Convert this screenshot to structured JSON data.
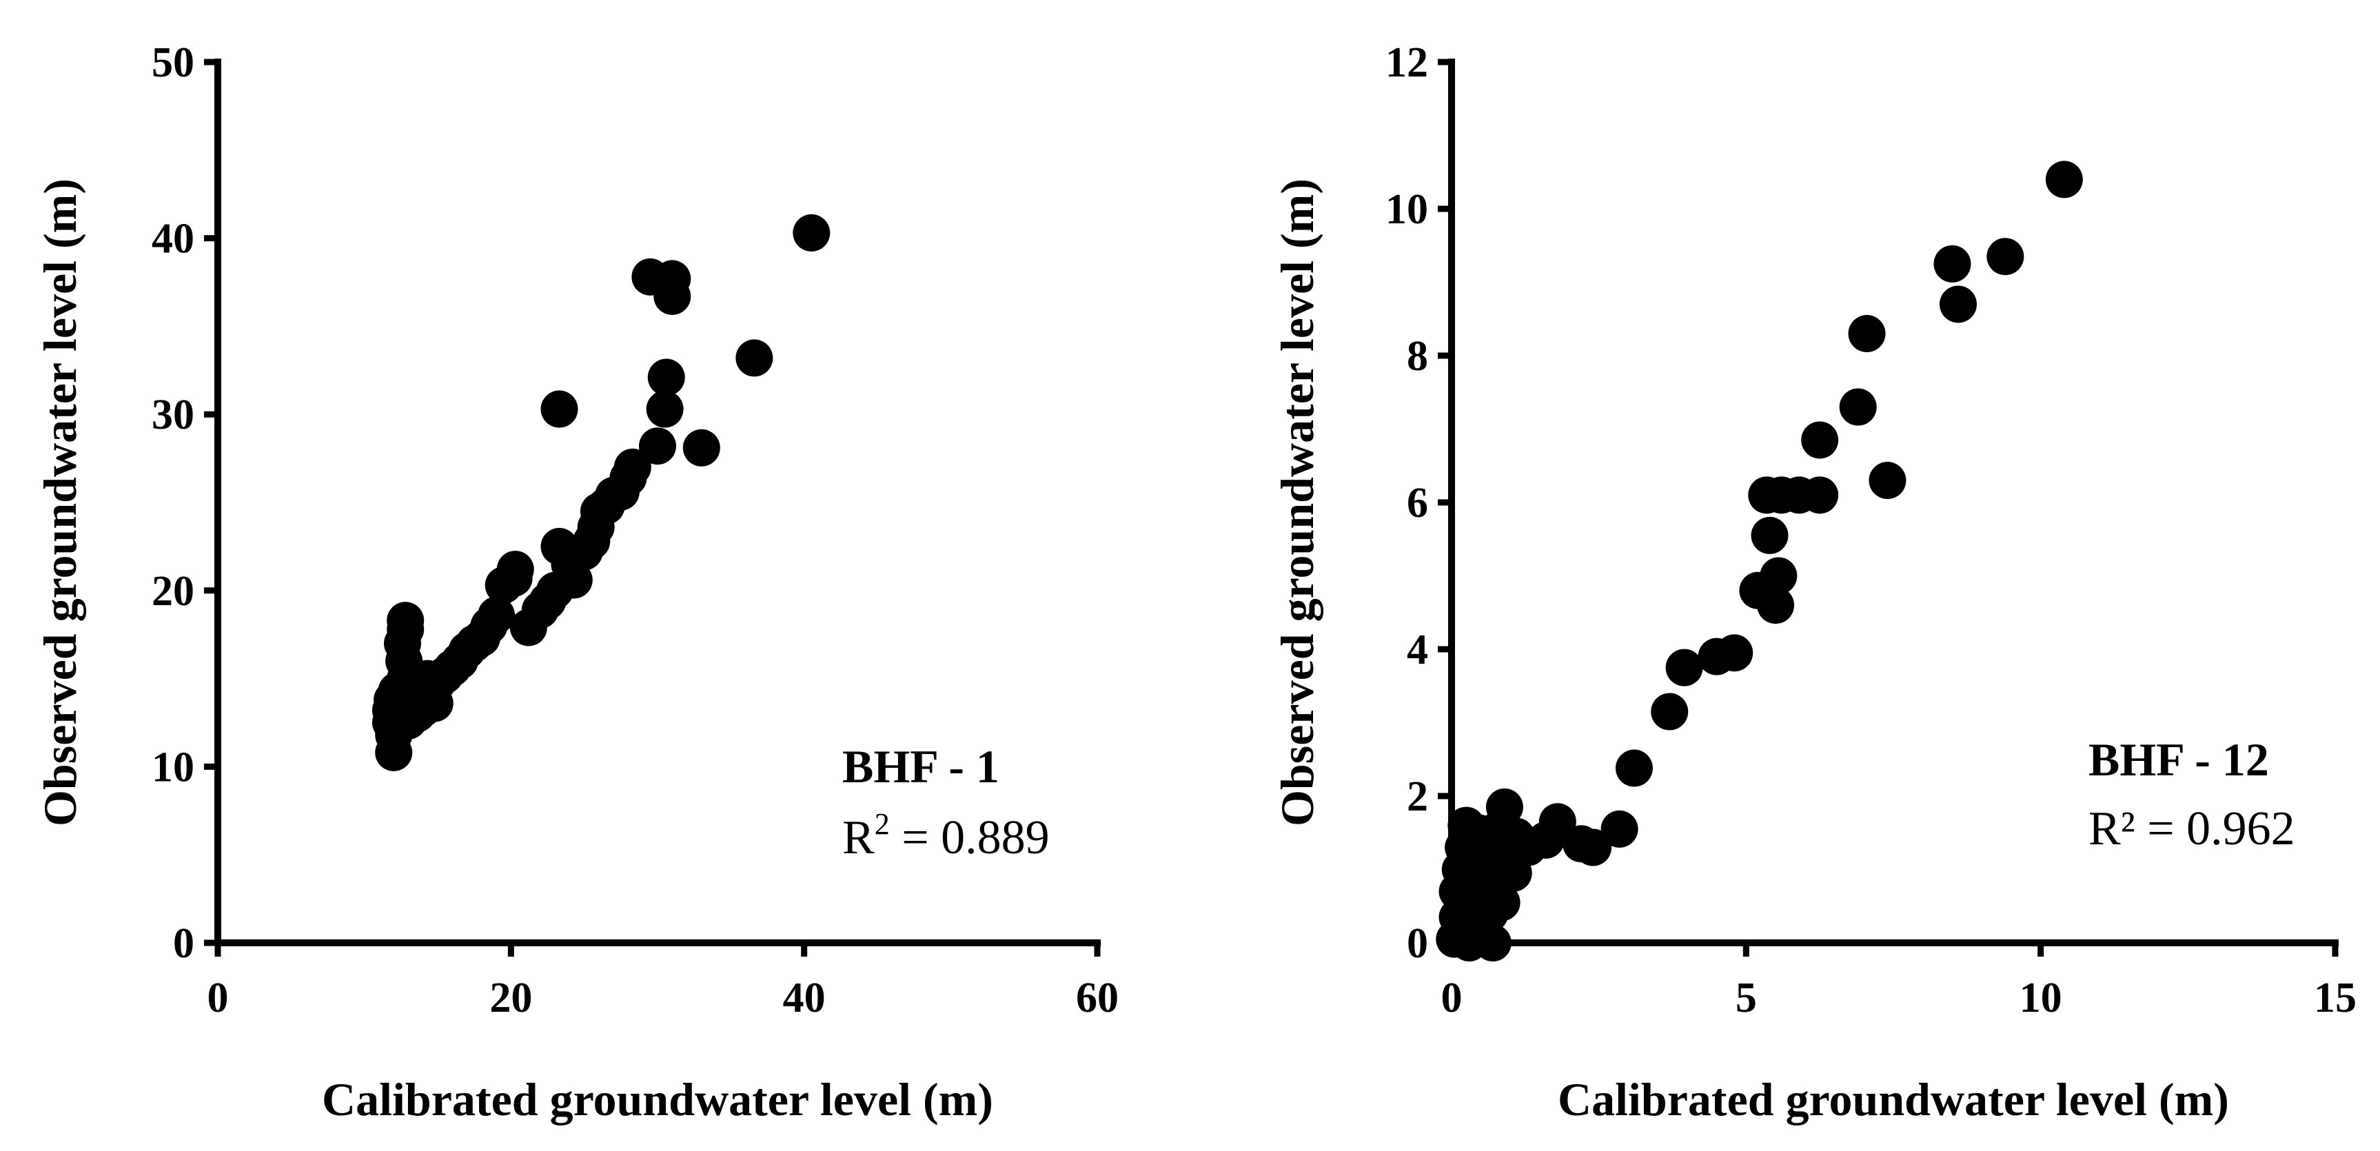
{
  "chart_data": [
    {
      "type": "scatter",
      "title": "",
      "xlabel": "Calibrated groundwater level (m)",
      "ylabel": "Observed groundwater level (m)",
      "xlim": [
        0,
        60
      ],
      "ylim": [
        0,
        50
      ],
      "xticks": [
        0,
        20,
        40,
        60
      ],
      "yticks": [
        0,
        10,
        20,
        30,
        40,
        50
      ],
      "xtick_labels": [
        "0",
        "20",
        "40",
        "60"
      ],
      "ytick_labels": [
        "0",
        "10",
        "20",
        "30",
        "40",
        "50"
      ],
      "grid": false,
      "annotation": {
        "name": "BHF - 1",
        "r2_prefix": "R",
        "r2_sup": "2",
        "r2_value": " = 0.889"
      },
      "color": "#000000",
      "points": [
        [
          12.0,
          10.8
        ],
        [
          12.0,
          11.8
        ],
        [
          11.8,
          12.5
        ],
        [
          11.8,
          13.2
        ],
        [
          11.9,
          13.8
        ],
        [
          12.2,
          14.3
        ],
        [
          12.5,
          13.0
        ],
        [
          12.7,
          14.0
        ],
        [
          12.8,
          15.0
        ],
        [
          12.7,
          16.0
        ],
        [
          12.6,
          17.0
        ],
        [
          12.8,
          17.8
        ],
        [
          12.8,
          18.3
        ],
        [
          13.0,
          12.6
        ],
        [
          13.2,
          13.4
        ],
        [
          13.4,
          14.4
        ],
        [
          13.6,
          13.0
        ],
        [
          13.8,
          14.2
        ],
        [
          14.0,
          13.3
        ],
        [
          14.3,
          15.0
        ],
        [
          14.6,
          14.0
        ],
        [
          14.8,
          13.6
        ],
        [
          15.0,
          14.8
        ],
        [
          15.5,
          15.2
        ],
        [
          16.0,
          15.6
        ],
        [
          16.5,
          16.0
        ],
        [
          17.0,
          16.6
        ],
        [
          17.5,
          17.0
        ],
        [
          18.0,
          17.3
        ],
        [
          18.5,
          18.0
        ],
        [
          19.0,
          18.6
        ],
        [
          19.5,
          20.3
        ],
        [
          20.2,
          20.7
        ],
        [
          20.3,
          21.2
        ],
        [
          21.2,
          17.9
        ],
        [
          22.0,
          18.9
        ],
        [
          22.5,
          19.4
        ],
        [
          23.0,
          20.0
        ],
        [
          23.3,
          22.5
        ],
        [
          24.0,
          21.5
        ],
        [
          24.3,
          20.6
        ],
        [
          25.0,
          22.2
        ],
        [
          25.5,
          22.8
        ],
        [
          25.8,
          23.6
        ],
        [
          26.0,
          24.5
        ],
        [
          26.5,
          24.8
        ],
        [
          27.0,
          25.4
        ],
        [
          27.5,
          25.6
        ],
        [
          28.0,
          26.4
        ],
        [
          28.3,
          27.0
        ],
        [
          29.5,
          37.8
        ],
        [
          30.0,
          28.2
        ],
        [
          30.5,
          30.3
        ],
        [
          30.6,
          32.1
        ],
        [
          31.0,
          37.7
        ],
        [
          31.0,
          36.7
        ],
        [
          33.0,
          28.1
        ],
        [
          36.6,
          33.2
        ],
        [
          40.5,
          40.3
        ],
        [
          23.3,
          30.3
        ]
      ]
    },
    {
      "type": "scatter",
      "title": "",
      "xlabel": "Calibrated groundwater level (m)",
      "ylabel": "Observed groundwater level (m)",
      "xlim": [
        0,
        15
      ],
      "ylim": [
        0,
        12
      ],
      "xticks": [
        0,
        5,
        10,
        15
      ],
      "yticks": [
        0,
        2,
        4,
        6,
        8,
        10,
        12
      ],
      "xtick_labels": [
        "0",
        "5",
        "10",
        "15"
      ],
      "ytick_labels": [
        "0",
        "2",
        "4",
        "6",
        "8",
        "10",
        "12"
      ],
      "grid": false,
      "annotation": {
        "name": "BHF - 12",
        "r2_prefix": "R",
        "r2_sup": "²",
        "r2_value": " = 0.962"
      },
      "color": "#000000",
      "points": [
        [
          0.05,
          0.05
        ],
        [
          0.1,
          0.35
        ],
        [
          0.1,
          0.7
        ],
        [
          0.15,
          1.0
        ],
        [
          0.2,
          1.3
        ],
        [
          0.25,
          1.6
        ],
        [
          0.3,
          0.0
        ],
        [
          0.3,
          0.45
        ],
        [
          0.35,
          0.85
        ],
        [
          0.4,
          1.2
        ],
        [
          0.45,
          1.5
        ],
        [
          0.5,
          0.2
        ],
        [
          0.5,
          0.65
        ],
        [
          0.55,
          1.05
        ],
        [
          0.6,
          1.35
        ],
        [
          0.65,
          0.4
        ],
        [
          0.7,
          0.8
        ],
        [
          0.7,
          0.0
        ],
        [
          0.75,
          1.2
        ],
        [
          0.8,
          1.55
        ],
        [
          0.85,
          0.55
        ],
        [
          0.9,
          1.0
        ],
        [
          0.9,
          1.85
        ],
        [
          0.95,
          1.35
        ],
        [
          1.05,
          0.95
        ],
        [
          1.1,
          1.45
        ],
        [
          1.3,
          1.3
        ],
        [
          1.6,
          1.4
        ],
        [
          1.8,
          1.65
        ],
        [
          2.2,
          1.35
        ],
        [
          2.4,
          1.3
        ],
        [
          2.85,
          1.55
        ],
        [
          3.1,
          2.38
        ],
        [
          3.7,
          3.15
        ],
        [
          3.95,
          3.75
        ],
        [
          4.5,
          3.9
        ],
        [
          4.8,
          3.95
        ],
        [
          5.2,
          4.8
        ],
        [
          5.35,
          6.1
        ],
        [
          5.4,
          5.55
        ],
        [
          5.5,
          4.6
        ],
        [
          5.55,
          5.0
        ],
        [
          5.6,
          6.1
        ],
        [
          5.9,
          6.1
        ],
        [
          6.25,
          6.85
        ],
        [
          6.25,
          6.1
        ],
        [
          6.9,
          7.3
        ],
        [
          7.05,
          8.3
        ],
        [
          7.4,
          6.3
        ],
        [
          8.5,
          9.25
        ],
        [
          8.6,
          8.7
        ],
        [
          9.4,
          9.35
        ],
        [
          10.4,
          10.4
        ]
      ]
    }
  ]
}
